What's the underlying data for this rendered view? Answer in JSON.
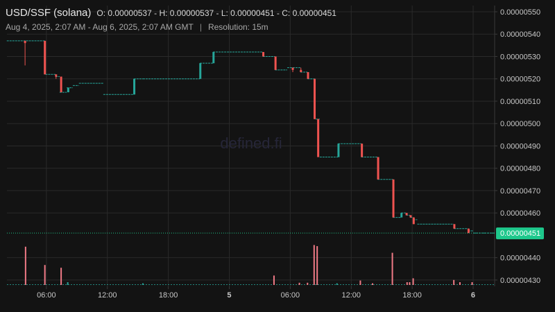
{
  "header": {
    "symbol": "USD/SSF (solana)",
    "ohlc": "O: 0.00000537 - H: 0.00000537 - L: 0.00000451 - C: 0.00000451",
    "range": "Aug 4, 2025, 2:07 AM - Aug 6, 2025, 2:07 AM GMT",
    "resolution": "Resolution: 15m"
  },
  "watermark": "defined.fi",
  "colors": {
    "up": "#26a69a",
    "down": "#ef5350",
    "background": "#131313",
    "grid": "#2a2a2a",
    "price_tag": "#1ec88c"
  },
  "chart_data": {
    "type": "candlestick",
    "x_ticks": [
      {
        "label": "06:00",
        "t": 6
      },
      {
        "label": "12:00",
        "t": 12
      },
      {
        "label": "18:00",
        "t": 18
      },
      {
        "label": "5",
        "t": 24
      },
      {
        "label": "06:00",
        "t": 30
      },
      {
        "label": "12:00",
        "t": 36
      },
      {
        "label": "18:00",
        "t": 42
      },
      {
        "label": "6",
        "t": 48
      }
    ],
    "y_ticks": [
      "0.00000550",
      "0.00000540",
      "0.00000530",
      "0.00000520",
      "0.00000510",
      "0.00000500",
      "0.00000490",
      "0.00000480",
      "0.00000470",
      "0.00000460",
      "0.00000440",
      "0.00000430"
    ],
    "ylim": [
      4.24e-06,
      5.5e-06
    ],
    "last_price": "0.00000451",
    "last_price_value": 4.51e-06,
    "x_range": [
      2.1167,
      50.1167
    ],
    "grid": true,
    "price_levels": [
      {
        "t0": 2.1,
        "t1": 4.0,
        "v": 5.37
      },
      {
        "t0": 4.0,
        "t1": 5.9,
        "v": 5.37
      },
      {
        "t0": 5.9,
        "t1": 6.9,
        "v": 5.22
      },
      {
        "t0": 6.9,
        "t1": 7.3,
        "v": 5.21
      },
      {
        "t0": 7.3,
        "t1": 8.0,
        "v": 5.14
      },
      {
        "t0": 8.0,
        "t1": 8.6,
        "v": 5.16
      },
      {
        "t0": 8.6,
        "t1": 9.2,
        "v": 5.17
      },
      {
        "t0": 9.2,
        "t1": 11.6,
        "v": 5.18
      },
      {
        "t0": 11.6,
        "t1": 14.6,
        "v": 5.13
      },
      {
        "t0": 14.6,
        "t1": 15.5,
        "v": 5.2
      },
      {
        "t0": 15.5,
        "t1": 21.1,
        "v": 5.2
      },
      {
        "t0": 21.1,
        "t1": 22.4,
        "v": 5.27
      },
      {
        "t0": 22.4,
        "t1": 27.3,
        "v": 5.32
      },
      {
        "t0": 27.3,
        "t1": 28.5,
        "v": 5.3
      },
      {
        "t0": 28.5,
        "t1": 29.7,
        "v": 5.24
      },
      {
        "t0": 29.7,
        "t1": 31.0,
        "v": 5.25
      },
      {
        "t0": 31.0,
        "t1": 31.7,
        "v": 5.23
      },
      {
        "t0": 31.7,
        "t1": 32.5,
        "v": 5.2
      },
      {
        "t0": 32.5,
        "t1": 32.9,
        "v": 5.02
      },
      {
        "t0": 32.9,
        "t1": 34.7,
        "v": 4.85
      },
      {
        "t0": 34.7,
        "t1": 37.0,
        "v": 4.91
      },
      {
        "t0": 37.0,
        "t1": 38.6,
        "v": 4.85
      },
      {
        "t0": 38.6,
        "t1": 40.1,
        "v": 4.75
      },
      {
        "t0": 40.1,
        "t1": 40.9,
        "v": 4.58
      },
      {
        "t0": 40.9,
        "t1": 41.4,
        "v": 4.6
      },
      {
        "t0": 41.4,
        "t1": 41.8,
        "v": 4.59
      },
      {
        "t0": 41.8,
        "t1": 42.1,
        "v": 4.58
      },
      {
        "t0": 42.1,
        "t1": 42.5,
        "v": 4.57
      },
      {
        "t0": 42.5,
        "t1": 46.1,
        "v": 4.55
      },
      {
        "t0": 46.1,
        "t1": 47.5,
        "v": 4.53
      },
      {
        "t0": 47.5,
        "t1": 48.0,
        "v": 4.52
      },
      {
        "t0": 48.0,
        "t1": 50.1,
        "v": 4.51
      }
    ],
    "candles": [
      {
        "t": 3.9,
        "o": 5.37,
        "c": 5.36,
        "h": 5.37,
        "l": 5.26
      },
      {
        "t": 5.85,
        "o": 5.37,
        "c": 5.22,
        "h": 5.37,
        "l": 5.22
      },
      {
        "t": 6.95,
        "o": 5.22,
        "c": 5.21,
        "h": 5.22,
        "l": 5.2
      },
      {
        "t": 7.45,
        "o": 5.21,
        "c": 5.14,
        "h": 5.21,
        "l": 5.14
      },
      {
        "t": 8.15,
        "o": 5.14,
        "c": 5.16,
        "h": 5.16,
        "l": 5.14
      },
      {
        "t": 14.65,
        "o": 5.13,
        "c": 5.2,
        "h": 5.2,
        "l": 5.13
      },
      {
        "t": 21.15,
        "o": 5.2,
        "c": 5.27,
        "h": 5.27,
        "l": 5.2
      },
      {
        "t": 22.45,
        "o": 5.27,
        "c": 5.32,
        "h": 5.32,
        "l": 5.27
      },
      {
        "t": 27.35,
        "o": 5.32,
        "c": 5.3,
        "h": 5.32,
        "l": 5.3
      },
      {
        "t": 28.55,
        "o": 5.3,
        "c": 5.24,
        "h": 5.3,
        "l": 5.24
      },
      {
        "t": 30.25,
        "o": 5.25,
        "c": 5.24,
        "h": 5.25,
        "l": 5.23
      },
      {
        "t": 31.05,
        "o": 5.24,
        "c": 5.23,
        "h": 5.25,
        "l": 5.23
      },
      {
        "t": 31.75,
        "o": 5.23,
        "c": 5.2,
        "h": 5.23,
        "l": 5.2
      },
      {
        "t": 32.4,
        "o": 5.2,
        "c": 5.02,
        "h": 5.2,
        "l": 5.02
      },
      {
        "t": 32.75,
        "o": 5.02,
        "c": 4.85,
        "h": 5.02,
        "l": 4.85
      },
      {
        "t": 34.75,
        "o": 4.85,
        "c": 4.91,
        "h": 4.91,
        "l": 4.85
      },
      {
        "t": 37.05,
        "o": 4.91,
        "c": 4.85,
        "h": 4.91,
        "l": 4.85
      },
      {
        "t": 38.65,
        "o": 4.85,
        "c": 4.75,
        "h": 4.85,
        "l": 4.75
      },
      {
        "t": 40.15,
        "o": 4.75,
        "c": 4.58,
        "h": 4.75,
        "l": 4.58
      },
      {
        "t": 40.95,
        "o": 4.58,
        "c": 4.6,
        "h": 4.6,
        "l": 4.58
      },
      {
        "t": 41.45,
        "o": 4.6,
        "c": 4.59,
        "h": 4.6,
        "l": 4.59
      },
      {
        "t": 41.85,
        "o": 4.59,
        "c": 4.58,
        "h": 4.59,
        "l": 4.58
      },
      {
        "t": 42.15,
        "o": 4.58,
        "c": 4.55,
        "h": 4.58,
        "l": 4.55
      },
      {
        "t": 46.15,
        "o": 4.55,
        "c": 4.53,
        "h": 4.55,
        "l": 4.53
      },
      {
        "t": 47.55,
        "o": 4.53,
        "c": 4.51,
        "h": 4.53,
        "l": 4.51
      }
    ],
    "volume": [
      {
        "t": 3.95,
        "v": 0.69,
        "d": 1
      },
      {
        "t": 5.85,
        "v": 0.36,
        "d": 1
      },
      {
        "t": 7.45,
        "v": 0.31,
        "d": 1
      },
      {
        "t": 8.1,
        "v": 0.05,
        "d": 0
      },
      {
        "t": 15.5,
        "v": 0.03,
        "d": 0
      },
      {
        "t": 28.4,
        "v": 0.17,
        "d": 1
      },
      {
        "t": 30.9,
        "v": 0.04,
        "d": 1
      },
      {
        "t": 31.7,
        "v": 0.04,
        "d": 1
      },
      {
        "t": 32.35,
        "v": 0.72,
        "d": 1
      },
      {
        "t": 32.65,
        "v": 0.7,
        "d": 1
      },
      {
        "t": 34.6,
        "v": 0.03,
        "d": 0
      },
      {
        "t": 36.9,
        "v": 0.08,
        "d": 1
      },
      {
        "t": 38.1,
        "v": 0.03,
        "d": 1
      },
      {
        "t": 40.05,
        "v": 0.58,
        "d": 1
      },
      {
        "t": 41.5,
        "v": 0.05,
        "d": 1
      },
      {
        "t": 41.75,
        "v": 0.05,
        "d": 1
      },
      {
        "t": 42.1,
        "v": 0.12,
        "d": 1
      },
      {
        "t": 46.1,
        "v": 0.09,
        "d": 1
      },
      {
        "t": 46.7,
        "v": 0.05,
        "d": 1
      },
      {
        "t": 47.9,
        "v": 0.05,
        "d": 1
      }
    ]
  }
}
